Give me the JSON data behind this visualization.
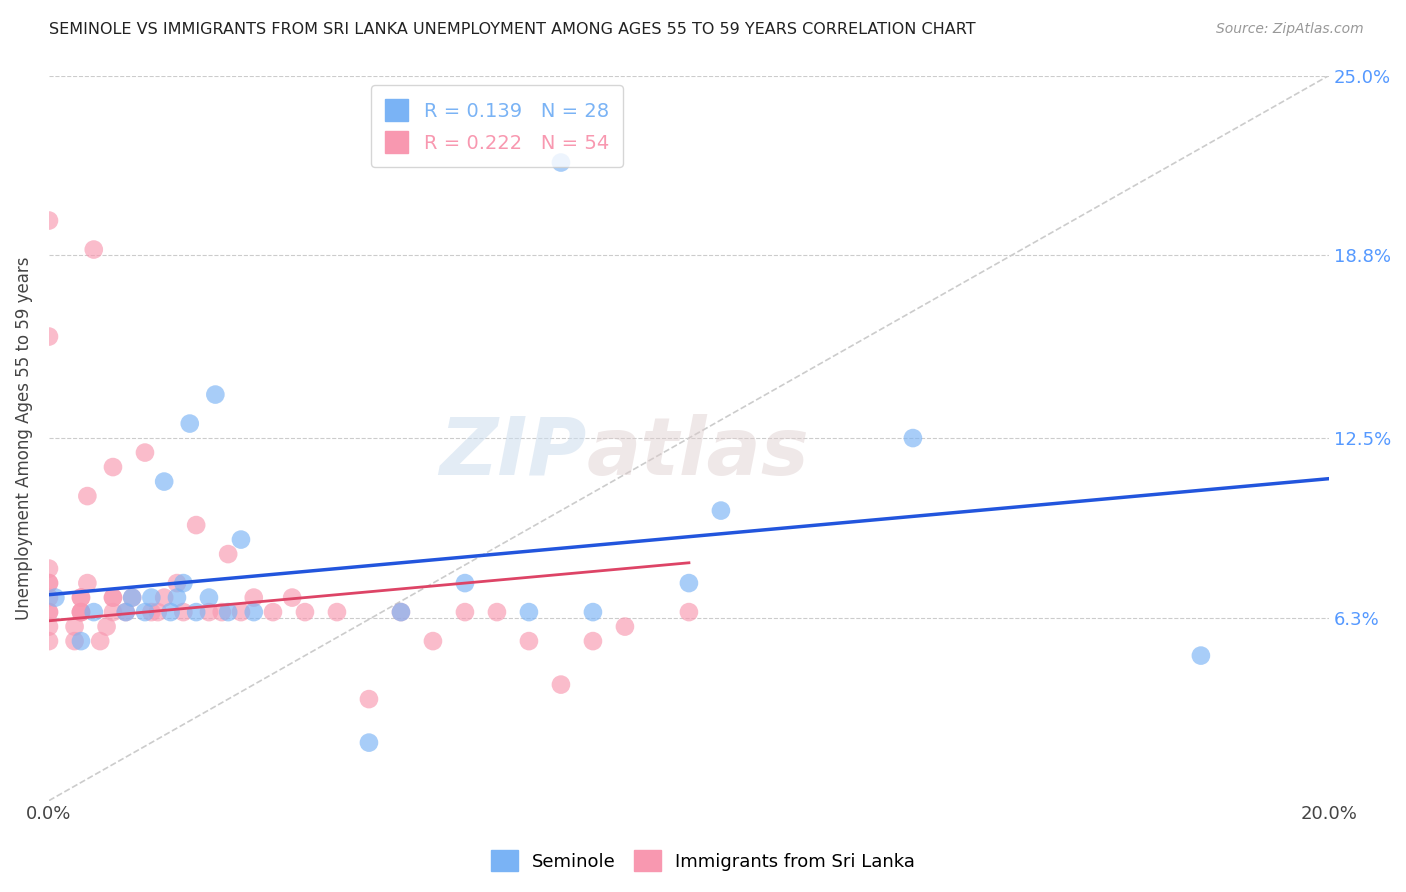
{
  "title": "SEMINOLE VS IMMIGRANTS FROM SRI LANKA UNEMPLOYMENT AMONG AGES 55 TO 59 YEARS CORRELATION CHART",
  "source": "Source: ZipAtlas.com",
  "ylabel": "Unemployment Among Ages 55 to 59 years",
  "xlim": [
    0.0,
    0.2
  ],
  "ylim": [
    0.0,
    0.25
  ],
  "xticks": [
    0.0,
    0.04,
    0.08,
    0.12,
    0.16,
    0.2
  ],
  "xticklabels": [
    "0.0%",
    "",
    "",
    "",
    "",
    "20.0%"
  ],
  "ytick_positions": [
    0.0,
    0.063,
    0.125,
    0.188,
    0.25
  ],
  "ytick_labels": [
    "",
    "6.3%",
    "12.5%",
    "18.8%",
    "25.0%"
  ],
  "seminole_color": "#7ab3f5",
  "srilanka_color": "#f898b0",
  "diagonal_color": "#cccccc",
  "trend_blue_color": "#2255dd",
  "trend_pink_color": "#dd4466",
  "legend_R_blue": "0.139",
  "legend_N_blue": "28",
  "legend_R_pink": "0.222",
  "legend_N_pink": "54",
  "watermark_zip": "ZIP",
  "watermark_atlas": "atlas",
  "seminole_x": [
    0.001,
    0.005,
    0.007,
    0.012,
    0.013,
    0.015,
    0.016,
    0.018,
    0.019,
    0.02,
    0.021,
    0.022,
    0.023,
    0.025,
    0.026,
    0.028,
    0.03,
    0.032,
    0.05,
    0.055,
    0.065,
    0.075,
    0.08,
    0.085,
    0.1,
    0.105,
    0.135,
    0.18
  ],
  "seminole_y": [
    0.07,
    0.055,
    0.065,
    0.065,
    0.07,
    0.065,
    0.07,
    0.11,
    0.065,
    0.07,
    0.075,
    0.13,
    0.065,
    0.07,
    0.14,
    0.065,
    0.09,
    0.065,
    0.02,
    0.065,
    0.075,
    0.065,
    0.22,
    0.065,
    0.075,
    0.1,
    0.125,
    0.05
  ],
  "srilanka_x": [
    0.0,
    0.0,
    0.0,
    0.0,
    0.0,
    0.0,
    0.0,
    0.0,
    0.0,
    0.0,
    0.004,
    0.004,
    0.005,
    0.005,
    0.005,
    0.005,
    0.005,
    0.006,
    0.006,
    0.007,
    0.008,
    0.009,
    0.01,
    0.01,
    0.01,
    0.01,
    0.012,
    0.013,
    0.015,
    0.016,
    0.017,
    0.018,
    0.02,
    0.021,
    0.023,
    0.025,
    0.027,
    0.028,
    0.03,
    0.032,
    0.035,
    0.038,
    0.04,
    0.045,
    0.05,
    0.055,
    0.06,
    0.065,
    0.07,
    0.075,
    0.08,
    0.085,
    0.09,
    0.1
  ],
  "srilanka_y": [
    0.055,
    0.06,
    0.065,
    0.065,
    0.07,
    0.075,
    0.075,
    0.08,
    0.16,
    0.2,
    0.055,
    0.06,
    0.065,
    0.065,
    0.065,
    0.07,
    0.07,
    0.075,
    0.105,
    0.19,
    0.055,
    0.06,
    0.065,
    0.07,
    0.07,
    0.115,
    0.065,
    0.07,
    0.12,
    0.065,
    0.065,
    0.07,
    0.075,
    0.065,
    0.095,
    0.065,
    0.065,
    0.085,
    0.065,
    0.07,
    0.065,
    0.07,
    0.065,
    0.065,
    0.035,
    0.065,
    0.055,
    0.065,
    0.065,
    0.055,
    0.04,
    0.055,
    0.06,
    0.065
  ],
  "blue_trend_x": [
    0.0,
    0.2
  ],
  "blue_trend_y": [
    0.071,
    0.111
  ],
  "pink_trend_x": [
    0.0,
    0.1
  ],
  "pink_trend_y": [
    0.062,
    0.082
  ]
}
